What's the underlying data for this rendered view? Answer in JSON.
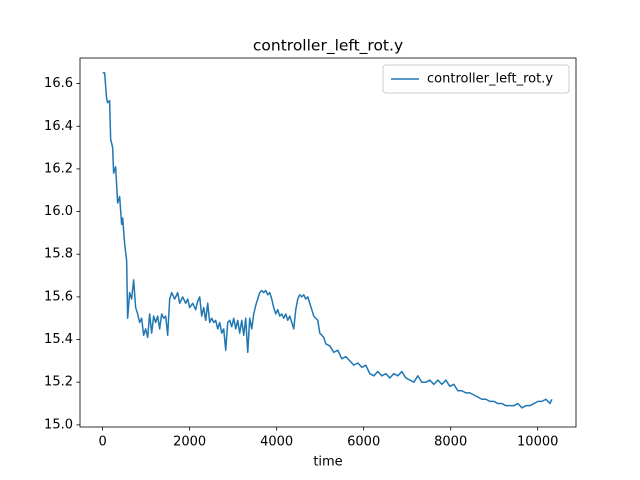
{
  "chart_data": {
    "type": "line",
    "title": "controller_left_rot.y",
    "xlabel": "time",
    "xlim": [
      -520,
      10880
    ],
    "ylim": [
      14.99,
      16.72
    ],
    "xticks": [
      0,
      2000,
      4000,
      6000,
      8000,
      10000
    ],
    "yticks": [
      {
        "value": 15.0,
        "label": "15.0"
      },
      15.2,
      15.4,
      15.6,
      15.8,
      {
        "value": 16.0,
        "label": "16.0"
      },
      16.2,
      16.4,
      16.6
    ],
    "legend": "upper right",
    "x": [
      0,
      46,
      92,
      115,
      161,
      184,
      230,
      253,
      299,
      345,
      391,
      437,
      460,
      506,
      552,
      575,
      621,
      667,
      713,
      759,
      805,
      851,
      897,
      943,
      989,
      1035,
      1081,
      1127,
      1173,
      1219,
      1265,
      1311,
      1357,
      1403,
      1449,
      1495,
      1541,
      1587,
      1656,
      1725,
      1771,
      1840,
      1909,
      1955,
      2001,
      2070,
      2139,
      2185,
      2231,
      2277,
      2323,
      2369,
      2415,
      2461,
      2507,
      2553,
      2599,
      2645,
      2691,
      2737,
      2783,
      2829,
      2875,
      2921,
      2967,
      3013,
      3059,
      3105,
      3151,
      3197,
      3243,
      3289,
      3335,
      3381,
      3427,
      3473,
      3519,
      3565,
      3611,
      3657,
      3703,
      3749,
      3795,
      3841,
      3887,
      3933,
      3979,
      4025,
      4071,
      4117,
      4163,
      4209,
      4255,
      4301,
      4347,
      4393,
      4439,
      4485,
      4531,
      4577,
      4623,
      4669,
      4715,
      4761,
      4807,
      4853,
      4899,
      4945,
      4991,
      5037,
      5083,
      5129,
      5221,
      5313,
      5405,
      5497,
      5589,
      5681,
      5773,
      5865,
      5957,
      6049,
      6141,
      6233,
      6325,
      6417,
      6509,
      6601,
      6693,
      6785,
      6877,
      6969,
      7061,
      7153,
      7245,
      7337,
      7429,
      7521,
      7613,
      7705,
      7797,
      7889,
      7981,
      8073,
      8165,
      8257,
      8349,
      8441,
      8533,
      8625,
      8717,
      8809,
      8901,
      8993,
      9085,
      9177,
      9269,
      9361,
      9453,
      9545,
      9637,
      9729,
      9821,
      9913,
      10005,
      10097,
      10189,
      10281,
      10327
    ],
    "series": [
      {
        "name": "controller_left_rot.y",
        "color": "#1f77b4",
        "values": [
          16.65,
          16.65,
          16.53,
          16.51,
          16.52,
          16.34,
          16.3,
          16.18,
          16.21,
          16.04,
          16.07,
          15.94,
          15.97,
          15.85,
          15.77,
          15.5,
          15.62,
          15.59,
          15.68,
          15.55,
          15.52,
          15.48,
          15.5,
          15.42,
          15.45,
          15.41,
          15.52,
          15.43,
          15.51,
          15.48,
          15.51,
          15.45,
          15.52,
          15.5,
          15.51,
          15.42,
          15.59,
          15.62,
          15.59,
          15.62,
          15.57,
          15.6,
          15.57,
          15.59,
          15.55,
          15.57,
          15.54,
          15.58,
          15.6,
          15.51,
          15.55,
          15.49,
          15.57,
          15.48,
          15.5,
          15.48,
          15.49,
          15.45,
          15.48,
          15.43,
          15.45,
          15.35,
          15.48,
          15.49,
          15.46,
          15.5,
          15.45,
          15.49,
          15.43,
          15.49,
          15.42,
          15.5,
          15.34,
          15.5,
          15.45,
          15.52,
          15.56,
          15.59,
          15.62,
          15.63,
          15.62,
          15.63,
          15.61,
          15.62,
          15.59,
          15.55,
          15.52,
          15.54,
          15.51,
          15.52,
          15.5,
          15.52,
          15.49,
          15.51,
          15.48,
          15.45,
          15.54,
          15.59,
          15.61,
          15.6,
          15.61,
          15.59,
          15.6,
          15.57,
          15.54,
          15.51,
          15.5,
          15.49,
          15.43,
          15.42,
          15.41,
          15.38,
          15.37,
          15.34,
          15.35,
          15.31,
          15.32,
          15.3,
          15.28,
          15.29,
          15.27,
          15.28,
          15.24,
          15.23,
          15.25,
          15.23,
          15.24,
          15.22,
          15.24,
          15.23,
          15.25,
          15.22,
          15.21,
          15.2,
          15.23,
          15.2,
          15.2,
          15.21,
          15.19,
          15.21,
          15.19,
          15.21,
          15.18,
          15.19,
          15.16,
          15.16,
          15.15,
          15.15,
          15.14,
          15.13,
          15.12,
          15.12,
          15.11,
          15.11,
          15.1,
          15.1,
          15.09,
          15.09,
          15.09,
          15.1,
          15.08,
          15.09,
          15.09,
          15.1,
          15.11,
          15.11,
          15.12,
          15.1,
          15.12
        ]
      }
    ]
  }
}
